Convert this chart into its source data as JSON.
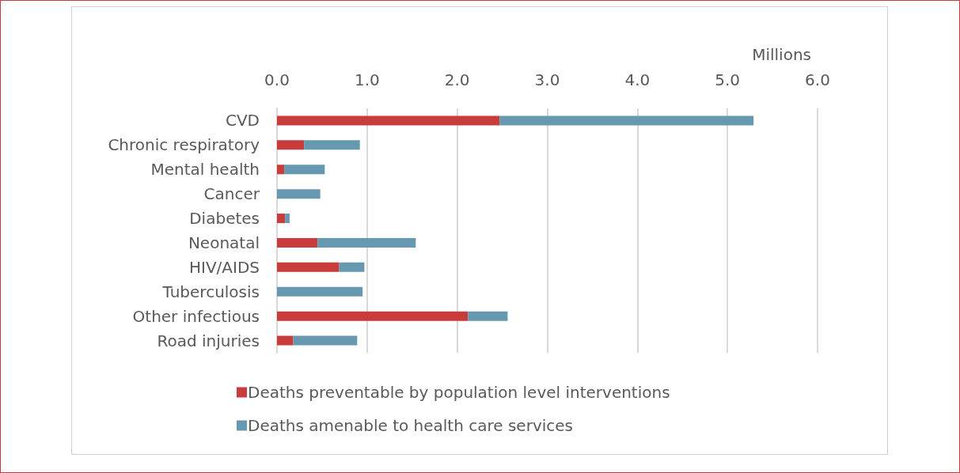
{
  "chart_data": {
    "type": "bar",
    "orientation": "horizontal",
    "stacked": true,
    "xlabel": "Millions",
    "categories": [
      "CVD",
      "Chronic respiratory",
      "Mental health",
      "Cancer",
      "Diabetes",
      "Neonatal",
      "HIV/AIDS",
      "Tuberculosis",
      "Other infectious",
      "Road injuries"
    ],
    "series": [
      {
        "name": "Deaths preventable by population level interventions",
        "color": "#c83c3c",
        "values": [
          2.47,
          0.3,
          0.08,
          0,
          0.09,
          0.45,
          0.69,
          0,
          2.12,
          0.18
        ]
      },
      {
        "name": "Deaths amenable to health care services",
        "color": "#6699b0",
        "values": [
          2.82,
          0.62,
          0.45,
          0.48,
          0.05,
          1.09,
          0.28,
          0.95,
          0.44,
          0.71
        ]
      }
    ],
    "xlim": [
      0,
      6
    ],
    "xticks": [
      {
        "value": 0,
        "label": "0.0"
      },
      {
        "value": 1,
        "label": "1.0"
      },
      {
        "value": 2,
        "label": "2.0"
      },
      {
        "value": 3,
        "label": "3.0"
      },
      {
        "value": 4,
        "label": "4.0"
      },
      {
        "value": 5,
        "label": "5.0"
      },
      {
        "value": 6,
        "label": "6.0"
      }
    ],
    "grid": "x",
    "legend": "bottom"
  }
}
